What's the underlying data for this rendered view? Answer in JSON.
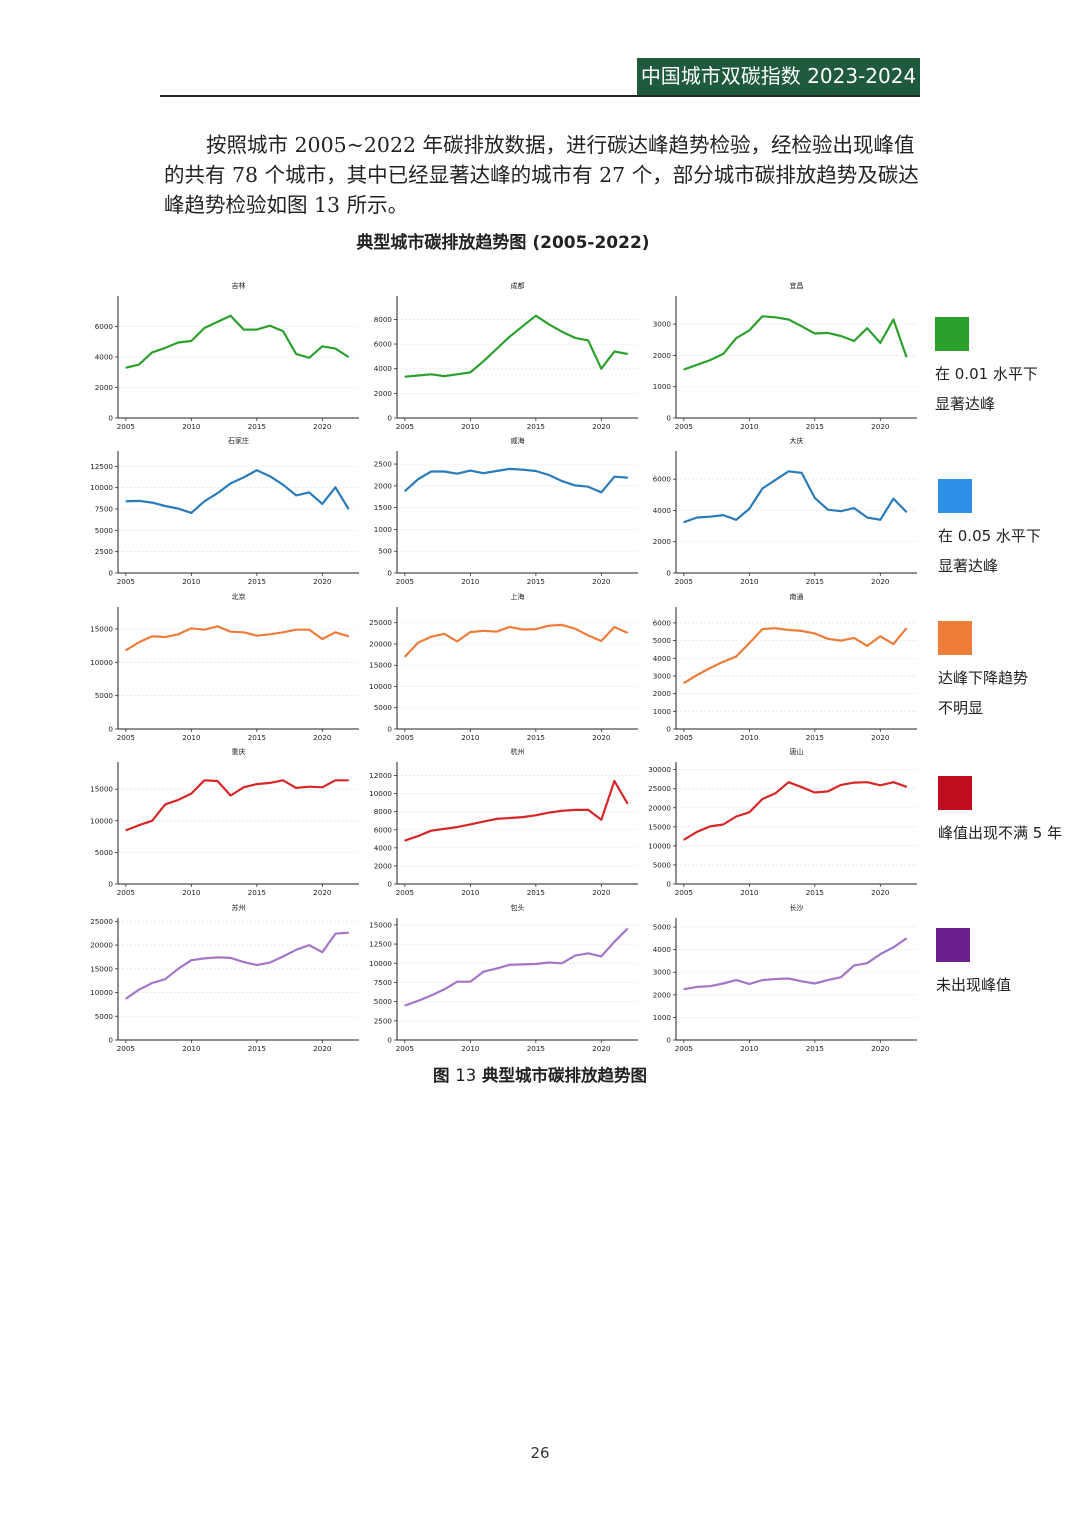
{
  "header": {
    "title": "中国城市双碳指数 2023-2024"
  },
  "paragraph": "按照城市 2005~2022 年碳排放数据，进行碳达峰趋势检验，经检验出现峰值的共有 78 个城市，其中已经显著达峰的城市有 27 个，部分城市碳排放趋势及碳达峰趋势检验如图 13 所示。",
  "figure_title": "典型城市碳排放趋势图 (2005-2022)",
  "caption": {
    "prefix": "图",
    "number": "13",
    "text": "典型城市碳排放趋势图"
  },
  "page_number": "26",
  "legend": [
    {
      "label": "在 0.01 水平下\n显著达峰",
      "color": "#2ca02c"
    },
    {
      "label": "在 0.05 水平下\n显著达峰",
      "color": "#2e8fe8"
    },
    {
      "label": "达峰下降趋势\n不明显",
      "color": "#ee7d3a"
    },
    {
      "label": "峰值出现不满 5 年",
      "color": "#c00d1e"
    },
    {
      "label": "未出现峰值",
      "color": "#6a1f8c"
    }
  ],
  "chart_data": [
    {
      "type": "line",
      "title": "吉林",
      "color": "#2ca02c",
      "x_ticks": [
        "2005",
        "2010",
        "2015",
        "2020"
      ],
      "y_ticks": [
        0,
        2000,
        4000,
        6000
      ],
      "ylim": [
        0,
        8000
      ],
      "x": [
        2005,
        2006,
        2007,
        2008,
        2009,
        2010,
        2011,
        2012,
        2013,
        2014,
        2015,
        2016,
        2017,
        2018,
        2019,
        2020,
        2021,
        2022
      ],
      "values": [
        3300,
        3500,
        4300,
        4600,
        4950,
        5050,
        5900,
        6300,
        6700,
        5800,
        5800,
        6050,
        5700,
        4200,
        3950,
        4700,
        4550,
        4000
      ]
    },
    {
      "type": "line",
      "title": "成都",
      "color": "#2ca02c",
      "x_ticks": [
        "2005",
        "2010",
        "2015",
        "2020"
      ],
      "y_ticks": [
        0,
        2000,
        4000,
        6000,
        8000
      ],
      "ylim": [
        0,
        9900
      ],
      "x": [
        2005,
        2006,
        2007,
        2008,
        2009,
        2010,
        2011,
        2012,
        2013,
        2014,
        2015,
        2016,
        2017,
        2018,
        2019,
        2020,
        2021,
        2022
      ],
      "values": [
        3350,
        3450,
        3550,
        3400,
        3550,
        3700,
        4600,
        5600,
        6600,
        7450,
        8300,
        7600,
        7000,
        6500,
        6300,
        4000,
        5400,
        5200
      ]
    },
    {
      "type": "line",
      "title": "宜昌",
      "color": "#2ca02c",
      "x_ticks": [
        "2005",
        "2010",
        "2015",
        "2020"
      ],
      "y_ticks": [
        0,
        1000,
        2000,
        3000
      ],
      "ylim": [
        0,
        3900
      ],
      "x": [
        2005,
        2006,
        2007,
        2008,
        2009,
        2010,
        2011,
        2012,
        2013,
        2014,
        2015,
        2016,
        2017,
        2018,
        2019,
        2020,
        2021,
        2022
      ],
      "values": [
        1550,
        1700,
        1850,
        2050,
        2550,
        2800,
        3250,
        3220,
        3150,
        2930,
        2700,
        2720,
        2620,
        2460,
        2870,
        2400,
        3150,
        1950
      ]
    },
    {
      "type": "line",
      "title": "石家庄",
      "color": "#2b7bb9",
      "x_ticks": [
        "2005",
        "2010",
        "2015",
        "2020"
      ],
      "y_ticks": [
        0,
        2500,
        5000,
        7500,
        10000,
        12500
      ],
      "ylim": [
        0,
        14300
      ],
      "x": [
        2005,
        2006,
        2007,
        2008,
        2009,
        2010,
        2011,
        2012,
        2013,
        2014,
        2015,
        2016,
        2017,
        2018,
        2019,
        2020,
        2021,
        2022
      ],
      "values": [
        8400,
        8450,
        8250,
        7850,
        7550,
        7050,
        8400,
        9350,
        10500,
        11200,
        12050,
        11350,
        10350,
        9100,
        9450,
        8100,
        10050,
        7500
      ]
    },
    {
      "type": "line",
      "title": "威海",
      "color": "#2b7bb9",
      "x_ticks": [
        "2005",
        "2010",
        "2015",
        "2020"
      ],
      "y_ticks": [
        0,
        500,
        1000,
        1500,
        2000,
        2500
      ],
      "ylim": [
        0,
        2800
      ],
      "x": [
        2005,
        2006,
        2007,
        2008,
        2009,
        2010,
        2011,
        2012,
        2013,
        2014,
        2015,
        2016,
        2017,
        2018,
        2019,
        2020,
        2021,
        2022
      ],
      "values": [
        1880,
        2150,
        2330,
        2330,
        2280,
        2350,
        2290,
        2340,
        2390,
        2370,
        2340,
        2250,
        2110,
        2010,
        1980,
        1850,
        2210,
        2190
      ]
    },
    {
      "type": "line",
      "title": "大庆",
      "color": "#2b7bb9",
      "x_ticks": [
        "2005",
        "2010",
        "2015",
        "2020"
      ],
      "y_ticks": [
        0,
        2000,
        4000,
        6000
      ],
      "ylim": [
        0,
        7800
      ],
      "x": [
        2005,
        2006,
        2007,
        2008,
        2009,
        2010,
        2011,
        2012,
        2013,
        2014,
        2015,
        2016,
        2017,
        2018,
        2019,
        2020,
        2021,
        2022
      ],
      "values": [
        3250,
        3550,
        3600,
        3700,
        3400,
        4100,
        5400,
        5950,
        6500,
        6400,
        4800,
        4050,
        3950,
        4150,
        3550,
        3400,
        4750,
        3900
      ]
    },
    {
      "type": "line",
      "title": "北京",
      "color": "#ee7d3a",
      "x_ticks": [
        "2005",
        "2010",
        "2015",
        "2020"
      ],
      "y_ticks": [
        0,
        5000,
        10000,
        15000
      ],
      "ylim": [
        0,
        18300
      ],
      "x": [
        2005,
        2006,
        2007,
        2008,
        2009,
        2010,
        2011,
        2012,
        2013,
        2014,
        2015,
        2016,
        2017,
        2018,
        2019,
        2020,
        2021,
        2022
      ],
      "values": [
        11800,
        13000,
        13900,
        13800,
        14200,
        15100,
        14900,
        15400,
        14600,
        14500,
        14000,
        14200,
        14500,
        14900,
        14900,
        13500,
        14500,
        13900
      ]
    },
    {
      "type": "line",
      "title": "上海",
      "color": "#ee7d3a",
      "x_ticks": [
        "2005",
        "2010",
        "2015",
        "2020"
      ],
      "y_ticks": [
        0,
        5000,
        10000,
        15000,
        20000,
        25000
      ],
      "ylim": [
        0,
        28700
      ],
      "x": [
        2005,
        2006,
        2007,
        2008,
        2009,
        2010,
        2011,
        2012,
        2013,
        2014,
        2015,
        2016,
        2017,
        2018,
        2019,
        2020,
        2021,
        2022
      ],
      "values": [
        17000,
        20300,
        21700,
        22400,
        20600,
        22800,
        23100,
        22900,
        24000,
        23400,
        23500,
        24300,
        24500,
        23600,
        22000,
        20700,
        24000,
        22600
      ]
    },
    {
      "type": "line",
      "title": "南通",
      "color": "#ee7d3a",
      "x_ticks": [
        "2005",
        "2010",
        "2015",
        "2020"
      ],
      "y_ticks": [
        0,
        1000,
        2000,
        3000,
        4000,
        5000,
        6000
      ],
      "ylim": [
        0,
        6900
      ],
      "x": [
        2005,
        2006,
        2007,
        2008,
        2009,
        2010,
        2011,
        2012,
        2013,
        2014,
        2015,
        2016,
        2017,
        2018,
        2019,
        2020,
        2021,
        2022
      ],
      "values": [
        2600,
        3050,
        3450,
        3800,
        4100,
        4850,
        5650,
        5700,
        5600,
        5550,
        5400,
        5100,
        5000,
        5150,
        4700,
        5250,
        4800,
        5700
      ]
    },
    {
      "type": "line",
      "title": "重庆",
      "color": "#d62728",
      "x_ticks": [
        "2005",
        "2010",
        "2015",
        "2020"
      ],
      "y_ticks": [
        0,
        5000,
        10000,
        15000
      ],
      "ylim": [
        0,
        19300
      ],
      "x": [
        2005,
        2006,
        2007,
        2008,
        2009,
        2010,
        2011,
        2012,
        2013,
        2014,
        2015,
        2016,
        2017,
        2018,
        2019,
        2020,
        2021,
        2022
      ],
      "values": [
        8500,
        9300,
        10000,
        12600,
        13300,
        14300,
        16400,
        16300,
        14000,
        15300,
        15800,
        16000,
        16400,
        15200,
        15400,
        15300,
        16400,
        16400
      ]
    },
    {
      "type": "line",
      "title": "杭州",
      "color": "#d62728",
      "x_ticks": [
        "2005",
        "2010",
        "2015",
        "2020"
      ],
      "y_ticks": [
        0,
        2000,
        4000,
        6000,
        8000,
        10000,
        12000
      ],
      "ylim": [
        0,
        13500
      ],
      "x": [
        2005,
        2006,
        2007,
        2008,
        2009,
        2010,
        2011,
        2012,
        2013,
        2014,
        2015,
        2016,
        2017,
        2018,
        2019,
        2020,
        2021,
        2022
      ],
      "values": [
        4800,
        5300,
        5900,
        6100,
        6300,
        6600,
        6900,
        7200,
        7300,
        7400,
        7600,
        7900,
        8100,
        8200,
        8200,
        7100,
        11400,
        8900
      ]
    },
    {
      "type": "line",
      "title": "唐山",
      "color": "#d62728",
      "x_ticks": [
        "2005",
        "2010",
        "2015",
        "2020"
      ],
      "y_ticks": [
        0,
        5000,
        10000,
        15000,
        20000,
        25000,
        30000
      ],
      "ylim": [
        0,
        32000
      ],
      "x": [
        2005,
        2006,
        2007,
        2008,
        2009,
        2010,
        2011,
        2012,
        2013,
        2014,
        2015,
        2016,
        2017,
        2018,
        2019,
        2020,
        2021,
        2022
      ],
      "values": [
        11600,
        13700,
        15100,
        15600,
        17700,
        18800,
        22300,
        23800,
        26700,
        25400,
        24000,
        24300,
        26000,
        26600,
        26700,
        25900,
        26700,
        25500
      ]
    },
    {
      "type": "line",
      "title": "苏州",
      "color": "#a475c9",
      "x_ticks": [
        "2005",
        "2010",
        "2015",
        "2020"
      ],
      "y_ticks": [
        0,
        5000,
        10000,
        15000,
        20000,
        25000
      ],
      "ylim": [
        0,
        25700
      ],
      "x": [
        2005,
        2006,
        2007,
        2008,
        2009,
        2010,
        2011,
        2012,
        2013,
        2014,
        2015,
        2016,
        2017,
        2018,
        2019,
        2020,
        2021,
        2022
      ],
      "values": [
        8700,
        10600,
        12000,
        12800,
        15000,
        16800,
        17200,
        17400,
        17300,
        16400,
        15800,
        16300,
        17600,
        19000,
        20000,
        18500,
        22400,
        22600
      ]
    },
    {
      "type": "line",
      "title": "包头",
      "color": "#a475c9",
      "x_ticks": [
        "2005",
        "2010",
        "2015",
        "2020"
      ],
      "y_ticks": [
        0,
        2500,
        5000,
        7500,
        10000,
        12500,
        15000
      ],
      "ylim": [
        0,
        15900
      ],
      "x": [
        2005,
        2006,
        2007,
        2008,
        2009,
        2010,
        2011,
        2012,
        2013,
        2014,
        2015,
        2016,
        2017,
        2018,
        2019,
        2020,
        2021,
        2022
      ],
      "values": [
        4500,
        5100,
        5800,
        6600,
        7600,
        7600,
        8900,
        9300,
        9800,
        9850,
        9900,
        10100,
        10000,
        11000,
        11300,
        10900,
        12800,
        14500
      ]
    },
    {
      "type": "line",
      "title": "长沙",
      "color": "#a475c9",
      "x_ticks": [
        "2005",
        "2010",
        "2015",
        "2020"
      ],
      "y_ticks": [
        0,
        1000,
        2000,
        3000,
        4000,
        5000
      ],
      "ylim": [
        0,
        5400
      ],
      "x": [
        2005,
        2006,
        2007,
        2008,
        2009,
        2010,
        2011,
        2012,
        2013,
        2014,
        2015,
        2016,
        2017,
        2018,
        2019,
        2020,
        2021,
        2022
      ],
      "values": [
        2250,
        2350,
        2380,
        2500,
        2650,
        2480,
        2650,
        2700,
        2720,
        2600,
        2500,
        2650,
        2780,
        3300,
        3400,
        3800,
        4100,
        4500
      ]
    }
  ]
}
